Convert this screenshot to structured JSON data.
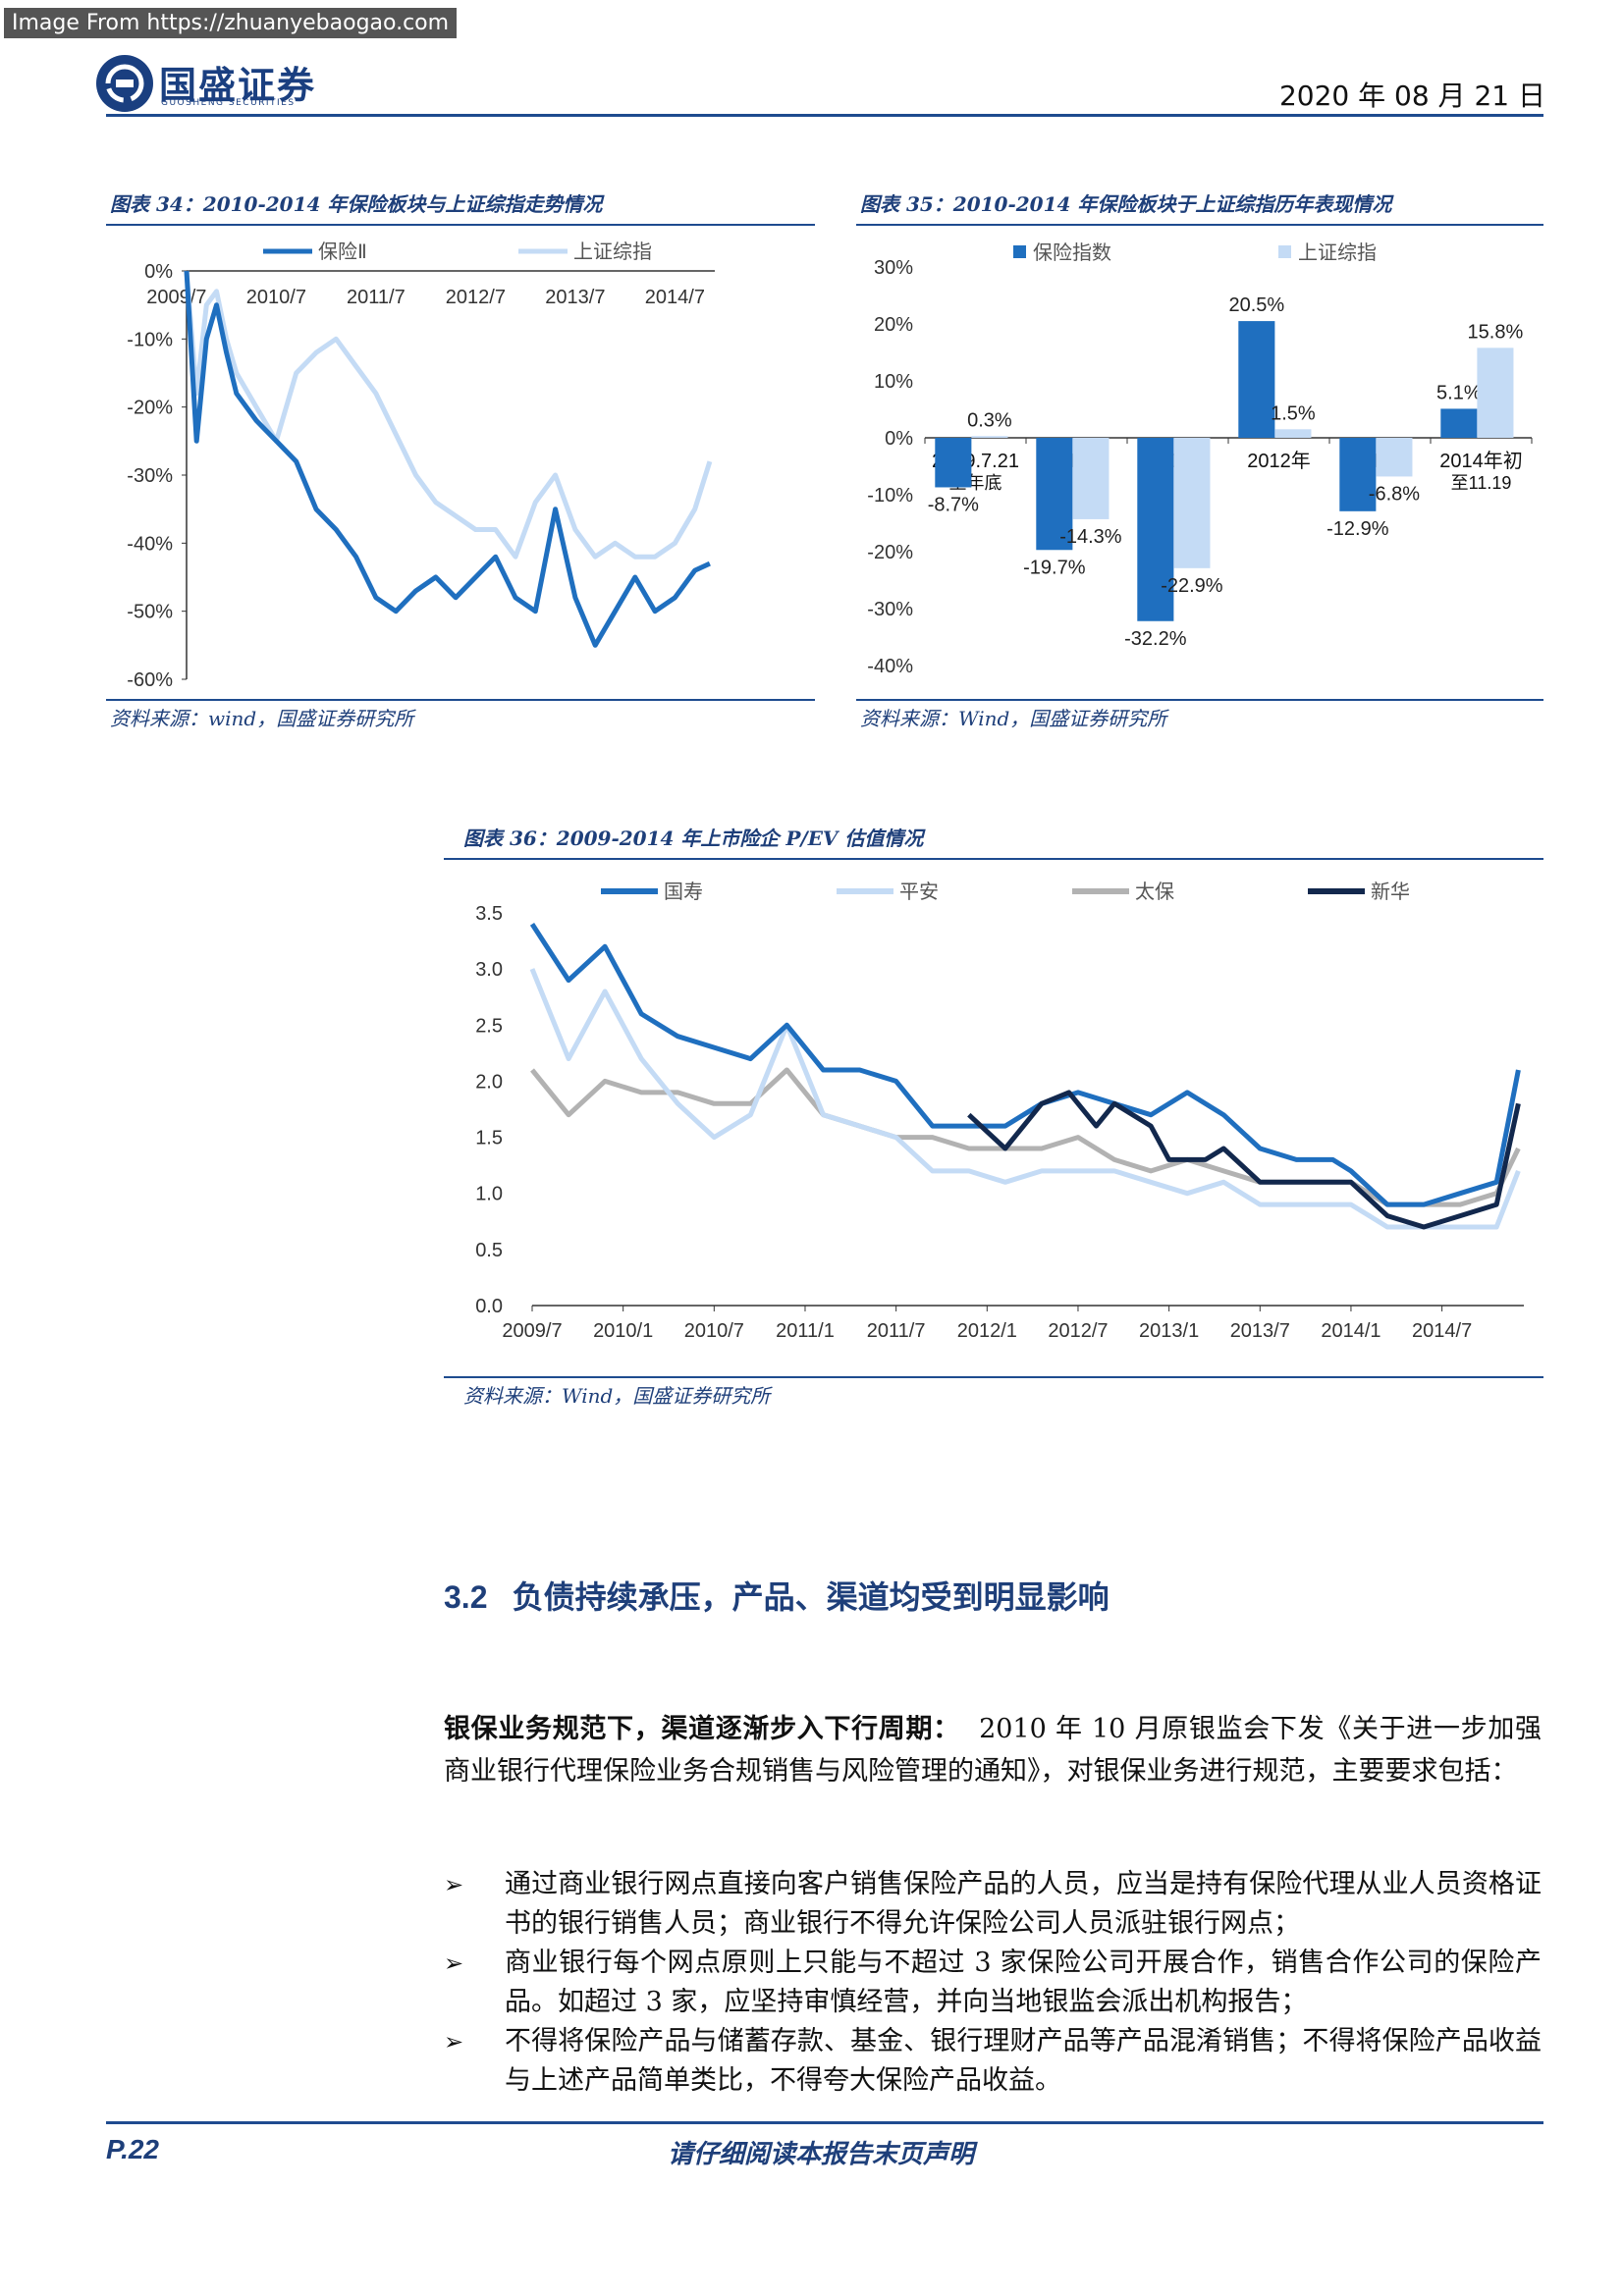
{
  "watermark": "Image From https://zhuanyebaogao.com",
  "header": {
    "logo_cn": "国盛证券",
    "logo_en": "GUOSHENG SECURITIES",
    "date": "2020 年 08 月 21 日"
  },
  "fig34": {
    "caption": "图表 34：2010-2014 年保险板块与上证综指走势情况",
    "source": "资料来源：wind，国盛证券研究所"
  },
  "fig35": {
    "caption": "图表 35：2010-2014 年保险板块于上证综指历年表现情况",
    "source": "资料来源：Wind，国盛证券研究所"
  },
  "fig36": {
    "caption": "图表 36：2009-2014 年上市险企 P/EV 估值情况",
    "source": "资料来源：Wind，国盛证券研究所"
  },
  "chart_data": [
    {
      "type": "line",
      "title": "",
      "y_ticks": [
        "0%",
        "-10%",
        "-20%",
        "-30%",
        "-40%",
        "-50%",
        "-60%"
      ],
      "x_ticks": [
        "2009/7",
        "2010/7",
        "2011/7",
        "2012/7",
        "2013/7",
        "2014/7"
      ],
      "ylim": [
        -60,
        0
      ],
      "legend_position": "top",
      "series": [
        {
          "name": "保险Ⅱ",
          "color": "#1f6fbf",
          "x": [
            2009.6,
            2009.7,
            2009.8,
            2009.9,
            2010.0,
            2010.1,
            2010.3,
            2010.5,
            2010.7,
            2010.9,
            2011.1,
            2011.3,
            2011.5,
            2011.7,
            2011.9,
            2012.1,
            2012.3,
            2012.5,
            2012.7,
            2012.9,
            2013.1,
            2013.3,
            2013.5,
            2013.7,
            2013.9,
            2014.1,
            2014.3,
            2014.5,
            2014.7,
            2014.85
          ],
          "values": [
            0,
            -25,
            -10,
            -5,
            -12,
            -18,
            -22,
            -25,
            -28,
            -35,
            -38,
            -42,
            -48,
            -50,
            -47,
            -45,
            -48,
            -45,
            -42,
            -48,
            -50,
            -35,
            -48,
            -55,
            -50,
            -45,
            -50,
            -48,
            -44,
            -43
          ]
        },
        {
          "name": "上证综指",
          "color": "#c4dbf5",
          "x": [
            2009.6,
            2009.7,
            2009.8,
            2009.9,
            2010.0,
            2010.1,
            2010.3,
            2010.5,
            2010.7,
            2010.9,
            2011.1,
            2011.3,
            2011.5,
            2011.7,
            2011.9,
            2012.1,
            2012.3,
            2012.5,
            2012.7,
            2012.9,
            2013.1,
            2013.3,
            2013.5,
            2013.7,
            2013.9,
            2014.1,
            2014.3,
            2014.5,
            2014.7,
            2014.85
          ],
          "values": [
            0,
            -18,
            -5,
            -3,
            -10,
            -15,
            -20,
            -25,
            -15,
            -12,
            -10,
            -14,
            -18,
            -24,
            -30,
            -34,
            -36,
            -38,
            -38,
            -42,
            -34,
            -30,
            -38,
            -42,
            -40,
            -42,
            -42,
            -40,
            -35,
            -28
          ]
        }
      ]
    },
    {
      "type": "bar",
      "title": "",
      "categories": [
        "2009.7.21至年底",
        "2010年",
        "2011年",
        "2012年",
        "2013年",
        "2014年初至11.19"
      ],
      "category_labels": [
        [
          "2009.7.21",
          "至年底"
        ],
        [
          "2010年"
        ],
        [
          "2011年"
        ],
        [
          "2012年"
        ],
        [
          "2013年"
        ],
        [
          "2014年初",
          "至11.19"
        ]
      ],
      "y_ticks": [
        "30%",
        "20%",
        "10%",
        "0%",
        "-10%",
        "-20%",
        "-30%",
        "-40%"
      ],
      "ylim": [
        -40,
        30
      ],
      "legend_position": "top",
      "series": [
        {
          "name": "保险指数",
          "color": "#1f6fbf",
          "values": [
            -8.7,
            -19.7,
            -32.2,
            20.5,
            -12.9,
            5.1
          ],
          "labels": [
            "-8.7%",
            "-19.7%",
            "-32.2%",
            "20.5%",
            "-12.9%",
            "5.1%"
          ]
        },
        {
          "name": "上证综指",
          "color": "#c4dbf5",
          "values": [
            0.3,
            -14.3,
            -22.9,
            1.5,
            -6.8,
            15.8
          ],
          "labels": [
            "0.3%",
            "-14.3%",
            "-22.9%",
            "1.5%",
            "-6.8%",
            "15.8%"
          ]
        }
      ]
    },
    {
      "type": "line",
      "title": "",
      "y_ticks": [
        "3.5",
        "3.0",
        "2.5",
        "2.0",
        "1.5",
        "1.0",
        "0.5",
        "0.0"
      ],
      "x_ticks": [
        "2009/7",
        "2010/1",
        "2010/7",
        "2011/1",
        "2011/7",
        "2012/1",
        "2012/7",
        "2013/1",
        "2013/7",
        "2014/1",
        "2014/7"
      ],
      "ylim": [
        0,
        3.5
      ],
      "legend_position": "top",
      "series": [
        {
          "name": "国寿",
          "color": "#1f6fbf",
          "x": [
            2009.5,
            2009.7,
            2009.9,
            2010.1,
            2010.3,
            2010.5,
            2010.7,
            2010.9,
            2011.1,
            2011.3,
            2011.5,
            2011.7,
            2011.9,
            2012.1,
            2012.3,
            2012.5,
            2012.7,
            2012.9,
            2013.1,
            2013.3,
            2013.5,
            2013.7,
            2013.9,
            2014.0,
            2014.2,
            2014.4,
            2014.6,
            2014.8,
            2014.92
          ],
          "values": [
            3.4,
            2.9,
            3.2,
            2.6,
            2.4,
            2.3,
            2.2,
            2.5,
            2.1,
            2.1,
            2.0,
            1.6,
            1.6,
            1.6,
            1.8,
            1.9,
            1.8,
            1.7,
            1.9,
            1.7,
            1.4,
            1.3,
            1.3,
            1.2,
            0.9,
            0.9,
            1.0,
            1.1,
            2.1
          ]
        },
        {
          "name": "平安",
          "color": "#c4dbf5",
          "x": [
            2009.5,
            2009.7,
            2009.9,
            2010.1,
            2010.3,
            2010.5,
            2010.7,
            2010.9,
            2011.1,
            2011.3,
            2011.5,
            2011.7,
            2011.9,
            2012.1,
            2012.3,
            2012.5,
            2012.7,
            2012.9,
            2013.1,
            2013.3,
            2013.5,
            2013.7,
            2013.9,
            2014.0,
            2014.2,
            2014.4,
            2014.6,
            2014.8,
            2014.92
          ],
          "values": [
            3.0,
            2.2,
            2.8,
            2.2,
            1.8,
            1.5,
            1.7,
            2.5,
            1.7,
            1.6,
            1.5,
            1.2,
            1.2,
            1.1,
            1.2,
            1.2,
            1.2,
            1.1,
            1.0,
            1.1,
            0.9,
            0.9,
            0.9,
            0.9,
            0.7,
            0.7,
            0.7,
            0.7,
            1.2
          ]
        },
        {
          "name": "太保",
          "color": "#b2b2b2",
          "x": [
            2009.5,
            2009.7,
            2009.9,
            2010.1,
            2010.3,
            2010.5,
            2010.7,
            2010.9,
            2011.1,
            2011.3,
            2011.5,
            2011.7,
            2011.9,
            2012.1,
            2012.3,
            2012.5,
            2012.7,
            2012.9,
            2013.1,
            2013.3,
            2013.5,
            2013.7,
            2013.9,
            2014.0,
            2014.2,
            2014.4,
            2014.6,
            2014.8,
            2014.92
          ],
          "values": [
            2.1,
            1.7,
            2.0,
            1.9,
            1.9,
            1.8,
            1.8,
            2.1,
            1.7,
            1.6,
            1.5,
            1.5,
            1.4,
            1.4,
            1.4,
            1.5,
            1.3,
            1.2,
            1.3,
            1.2,
            1.1,
            1.1,
            1.1,
            1.1,
            0.9,
            0.9,
            0.9,
            1.0,
            1.4
          ]
        },
        {
          "name": "新华",
          "color": "#12284d",
          "x": [
            2011.9,
            2012.1,
            2012.3,
            2012.45,
            2012.6,
            2012.7,
            2012.9,
            2013.0,
            2013.2,
            2013.3,
            2013.5,
            2013.7,
            2013.9,
            2014.0,
            2014.2,
            2014.4,
            2014.6,
            2014.8,
            2014.92
          ],
          "values": [
            1.7,
            1.4,
            1.8,
            1.9,
            1.6,
            1.8,
            1.6,
            1.3,
            1.3,
            1.4,
            1.1,
            1.1,
            1.1,
            1.1,
            0.8,
            0.7,
            0.8,
            0.9,
            1.8
          ]
        }
      ]
    }
  ],
  "section": {
    "number": "3.2",
    "title": "负债持续承压，产品、渠道均受到明显影响"
  },
  "paragraph": {
    "lead": "银保业务规范下，渠道逐渐步入下行周期：",
    "body": "2010 年 10 月原银监会下发《关于进一步加强商业银行代理保险业务合规销售与风险管理的通知》，对银保业务进行规范，主要要求包括："
  },
  "bullets": [
    {
      "marker": "➢",
      "text": "通过商业银行网点直接向客户销售保险产品的人员，应当是持有保险代理从业人员资格证书的银行销售人员；商业银行不得允许保险公司人员派驻银行网点；"
    },
    {
      "marker": "➢",
      "text": "商业银行每个网点原则上只能与不超过 3 家保险公司开展合作，销售合作公司的保险产品。如超过 3 家，应坚持审慎经营，并向当地银监会派出机构报告；"
    },
    {
      "marker": "➢",
      "text": "不得将保险产品与储蓄存款、基金、银行理财产品等产品混淆销售；不得将保险产品收益与上述产品简单类比，不得夸大保险产品收益。"
    }
  ],
  "footer": {
    "page": "P.22",
    "text": "请仔细阅读本报告末页声明"
  }
}
